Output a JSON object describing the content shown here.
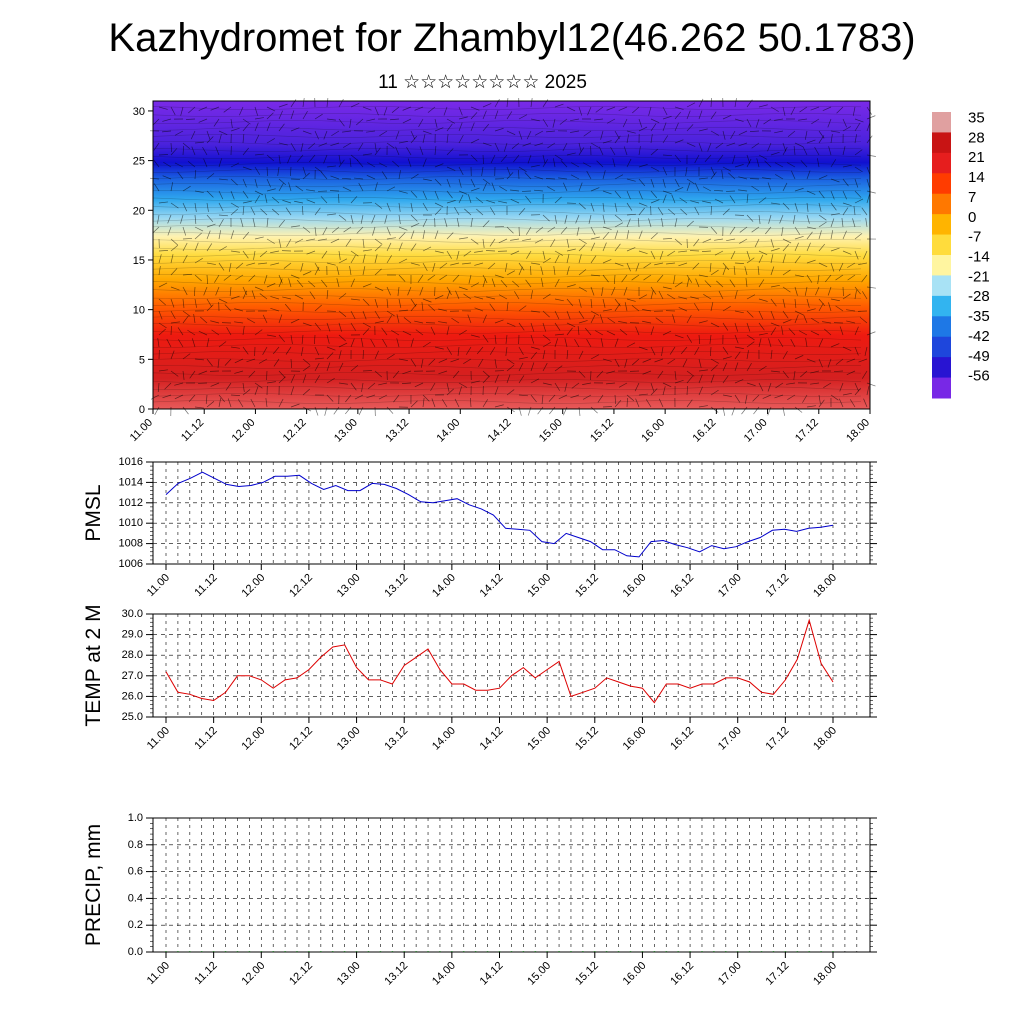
{
  "title": "Kazhydromet for Zhambyl12(46.262 50.1783)",
  "subtitle": "11 ☆☆☆☆☆☆☆☆ 2025",
  "chart_data": [
    {
      "type": "heatmap",
      "description_kind": "vertical temperature cross-section with wind barbs",
      "x_tick_labels": [
        "11.00",
        "11.12",
        "12.00",
        "12.12",
        "13.00",
        "13.12",
        "14.00",
        "14.12",
        "15.00",
        "15.12",
        "16.00",
        "16.12",
        "17.00",
        "17.12",
        "18.00"
      ],
      "y_ticks": [
        0,
        5,
        10,
        15,
        20,
        25,
        30
      ],
      "ylim": [
        0,
        31
      ],
      "colorbar_labels": [
        "35",
        "28",
        "21",
        "14",
        "7",
        "0",
        "-7",
        "-14",
        "-21",
        "-28",
        "-35",
        "-42",
        "-49",
        "-56"
      ],
      "colors": [
        "#e0a0a0",
        "#c81414",
        "#e61e1e",
        "#ff3c00",
        "#ff7800",
        "#ffb400",
        "#ffdc3c",
        "#fff5a0",
        "#a8e2f5",
        "#32b4f0",
        "#1e78e6",
        "#1e46dc",
        "#2814d2",
        "#7828e6"
      ]
    },
    {
      "type": "line",
      "ylabel": "PMSL",
      "x_tick_labels": [
        "11.00",
        "11.12",
        "12.00",
        "12.12",
        "13.00",
        "13.12",
        "14.00",
        "14.12",
        "15.00",
        "15.12",
        "16.00",
        "16.12",
        "17.00",
        "17.12",
        "18.00"
      ],
      "y_ticks": [
        1006,
        1008,
        1010,
        1012,
        1014,
        1016
      ],
      "ylim": [
        1006,
        1016
      ],
      "series": [
        {
          "color": "#0000cc",
          "values": [
            1012.8,
            1013.9,
            1014.4,
            1015.0,
            1014.4,
            1013.8,
            1013.6,
            1013.7,
            1014.0,
            1014.6,
            1014.6,
            1014.7,
            1013.9,
            1013.3,
            1013.7,
            1013.2,
            1013.2,
            1013.9,
            1013.8,
            1013.4,
            1012.8,
            1012.1,
            1012.0,
            1012.2,
            1012.4,
            1011.8,
            1011.4,
            1010.8,
            1009.5,
            1009.4,
            1009.3,
            1008.2,
            1008.0,
            1009.0,
            1008.6,
            1008.2,
            1007.4,
            1007.4,
            1006.8,
            1006.7,
            1008.2,
            1008.3,
            1007.9,
            1007.6,
            1007.2,
            1007.8,
            1007.5,
            1007.7,
            1008.2,
            1008.6,
            1009.3,
            1009.4,
            1009.2,
            1009.5,
            1009.6,
            1009.8
          ]
        }
      ]
    },
    {
      "type": "line",
      "ylabel": "TEMP at 2 M",
      "x_tick_labels": [
        "11.00",
        "11.12",
        "12.00",
        "12.12",
        "13.00",
        "13.12",
        "14.00",
        "14.12",
        "15.00",
        "15.12",
        "16.00",
        "16.12",
        "17.00",
        "17.12",
        "18.00"
      ],
      "y_ticks": [
        "25.0",
        "26.0",
        "27.0",
        "28.0",
        "29.0",
        "30.0"
      ],
      "ylim": [
        25,
        30
      ],
      "series": [
        {
          "color": "#dd0000",
          "values": [
            27.2,
            26.2,
            26.1,
            25.9,
            25.8,
            26.2,
            27.0,
            27.0,
            26.8,
            26.4,
            26.8,
            26.9,
            27.3,
            27.9,
            28.4,
            28.5,
            27.4,
            26.8,
            26.8,
            26.6,
            27.5,
            27.9,
            28.3,
            27.3,
            26.6,
            26.6,
            26.3,
            26.3,
            26.4,
            27.0,
            27.4,
            26.9,
            27.3,
            27.7,
            26.0,
            26.2,
            26.4,
            26.9,
            26.7,
            26.5,
            26.4,
            25.7,
            26.6,
            26.6,
            26.4,
            26.6,
            26.6,
            26.9,
            26.9,
            26.7,
            26.2,
            26.1,
            26.8,
            27.8,
            29.7,
            27.6,
            26.7
          ]
        }
      ]
    },
    {
      "type": "bar",
      "ylabel": "PRECIP, mm",
      "x_tick_labels": [
        "11.00",
        "11.12",
        "12.00",
        "12.12",
        "13.00",
        "13.12",
        "14.00",
        "14.12",
        "15.00",
        "15.12",
        "16.00",
        "16.12",
        "17.00",
        "17.12",
        "18.00"
      ],
      "y_ticks": [
        "0.0",
        "0.2",
        "0.4",
        "0.6",
        "0.8",
        "1.0"
      ],
      "ylim": [
        0,
        1
      ],
      "values": [
        0,
        0,
        0,
        0,
        0,
        0,
        0,
        0,
        0,
        0,
        0,
        0,
        0,
        0,
        0,
        0,
        0,
        0,
        0,
        0,
        0,
        0,
        0,
        0,
        0,
        0,
        0,
        0,
        0,
        0,
        0,
        0,
        0,
        0,
        0,
        0,
        0,
        0,
        0,
        0,
        0,
        0,
        0,
        0,
        0,
        0,
        0,
        0,
        0,
        0,
        0,
        0,
        0,
        0,
        0,
        0,
        0
      ]
    }
  ]
}
